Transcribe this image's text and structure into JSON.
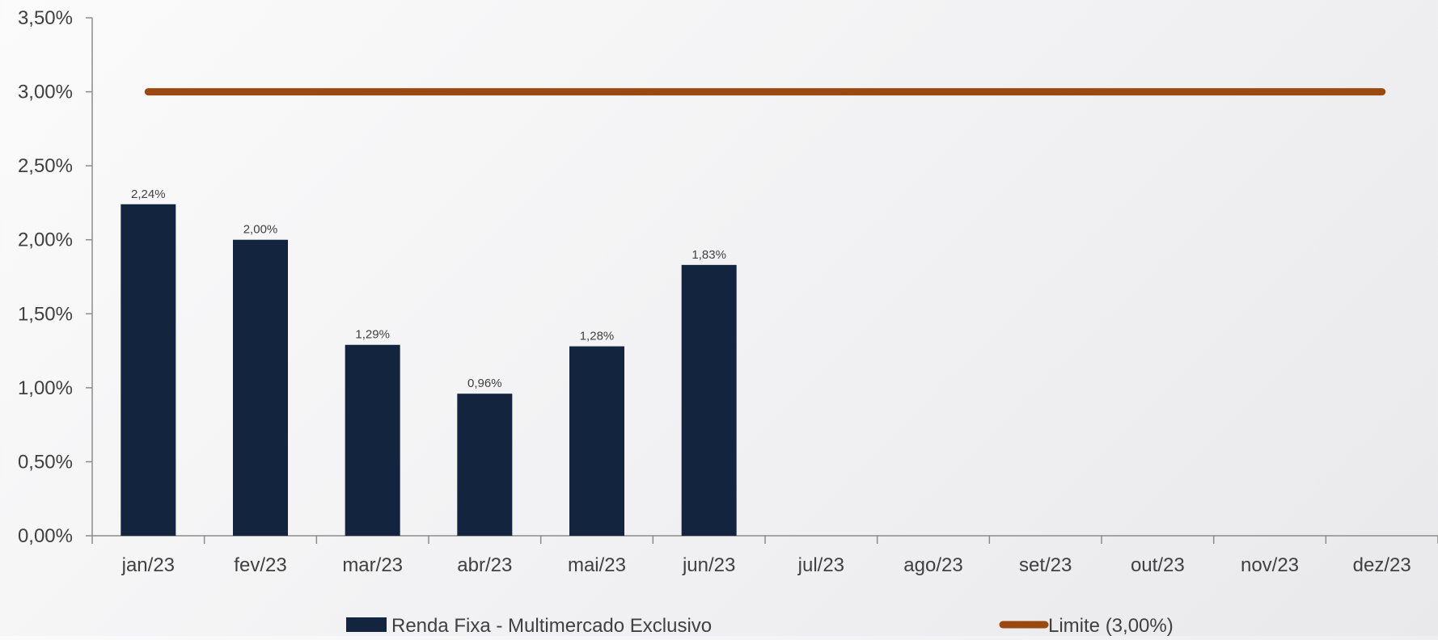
{
  "chart_data": {
    "type": "bar",
    "categories": [
      "jan/23",
      "fev/23",
      "mar/23",
      "abr/23",
      "mai/23",
      "jun/23",
      "jul/23",
      "ago/23",
      "set/23",
      "out/23",
      "nov/23",
      "dez/23"
    ],
    "series": [
      {
        "name": "Renda Fixa - Multimercado Exclusivo",
        "type": "bar",
        "values": [
          2.24,
          2.0,
          1.29,
          0.96,
          1.28,
          1.83,
          null,
          null,
          null,
          null,
          null,
          null
        ],
        "data_labels": [
          "2,24%",
          "2,00%",
          "1,29%",
          "0,96%",
          "1,28%",
          "1,83%",
          "",
          "",
          "",
          "",
          "",
          ""
        ],
        "color": "#13243f"
      },
      {
        "name": "Limite (3,00%)",
        "type": "line",
        "values": [
          3.0,
          3.0,
          3.0,
          3.0,
          3.0,
          3.0,
          3.0,
          3.0,
          3.0,
          3.0,
          3.0,
          3.0
        ],
        "color": "#9a4a10"
      }
    ],
    "ylim": [
      0,
      3.5
    ],
    "yticks": [
      0,
      0.5,
      1.0,
      1.5,
      2.0,
      2.5,
      3.0,
      3.5
    ],
    "ytick_labels": [
      "0,00%",
      "0,50%",
      "1,00%",
      "1,50%",
      "2,00%",
      "2,50%",
      "3,00%",
      "3,50%"
    ],
    "grid": false,
    "legend_position": "bottom"
  }
}
